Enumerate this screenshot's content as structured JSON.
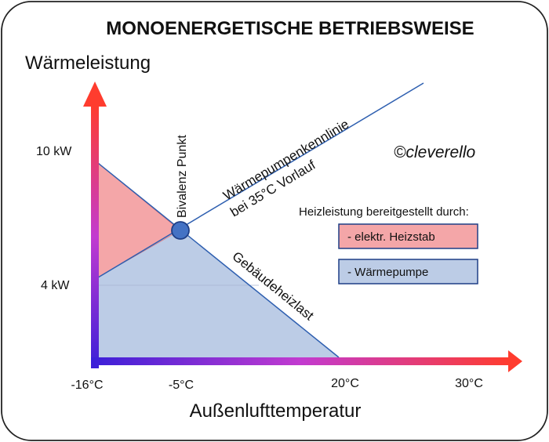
{
  "title": "MONOENERGETISCHE BETRIEBSWEISE",
  "y_axis_label": "Wärmeleistung",
  "x_axis_label": "Außenlufttemperatur",
  "watermark": "©cleverello",
  "annotations": {
    "bivalence_point": "Bivalenz Punkt",
    "heat_pump_curve_line1": "Wärmepumpenkennlinie",
    "heat_pump_curve_line2": "bei 35°C Vorlauf",
    "building_load": "Gebäudeheizlast"
  },
  "legend": {
    "title": "Heizleistung bereitgestellt durch:",
    "items": [
      {
        "label": "- elektr. Heizstab",
        "color": "#f4a6a8"
      },
      {
        "label": "- Wärmepumpe",
        "color": "#bccce6"
      }
    ]
  },
  "colors": {
    "axis_gradient_start": "#3a1fd8",
    "axis_gradient_mid": "#c23bd0",
    "axis_gradient_end": "#ff3c2e",
    "line": "#2e5fb0",
    "heizstab_fill": "#f4a6a8",
    "waermepumpe_fill": "#bccce6",
    "point_fill": "#4472c4",
    "point_stroke": "#1f3f86"
  },
  "chart_data": {
    "type": "area",
    "xlabel": "Außenlufttemperatur",
    "ylabel": "Wärmeleistung",
    "x_ticks": [
      "-16°C",
      "-5°C",
      "20°C",
      "30°C"
    ],
    "y_ticks": [
      "4 kW",
      "10 kW"
    ],
    "x_range": [
      -16,
      30
    ],
    "y_range": [
      0,
      14
    ],
    "series": [
      {
        "name": "Gebäudeheizlast",
        "x": [
          -16,
          -5,
          20
        ],
        "y": [
          10,
          6.2,
          0
        ]
      },
      {
        "name": "Wärmepumpenkennlinie bei 35°C Vorlauf",
        "x": [
          -16,
          -5,
          30
        ],
        "y": [
          4,
          6.2,
          14
        ]
      }
    ],
    "bivalence_point": {
      "x": -5,
      "y": 6.2
    }
  }
}
